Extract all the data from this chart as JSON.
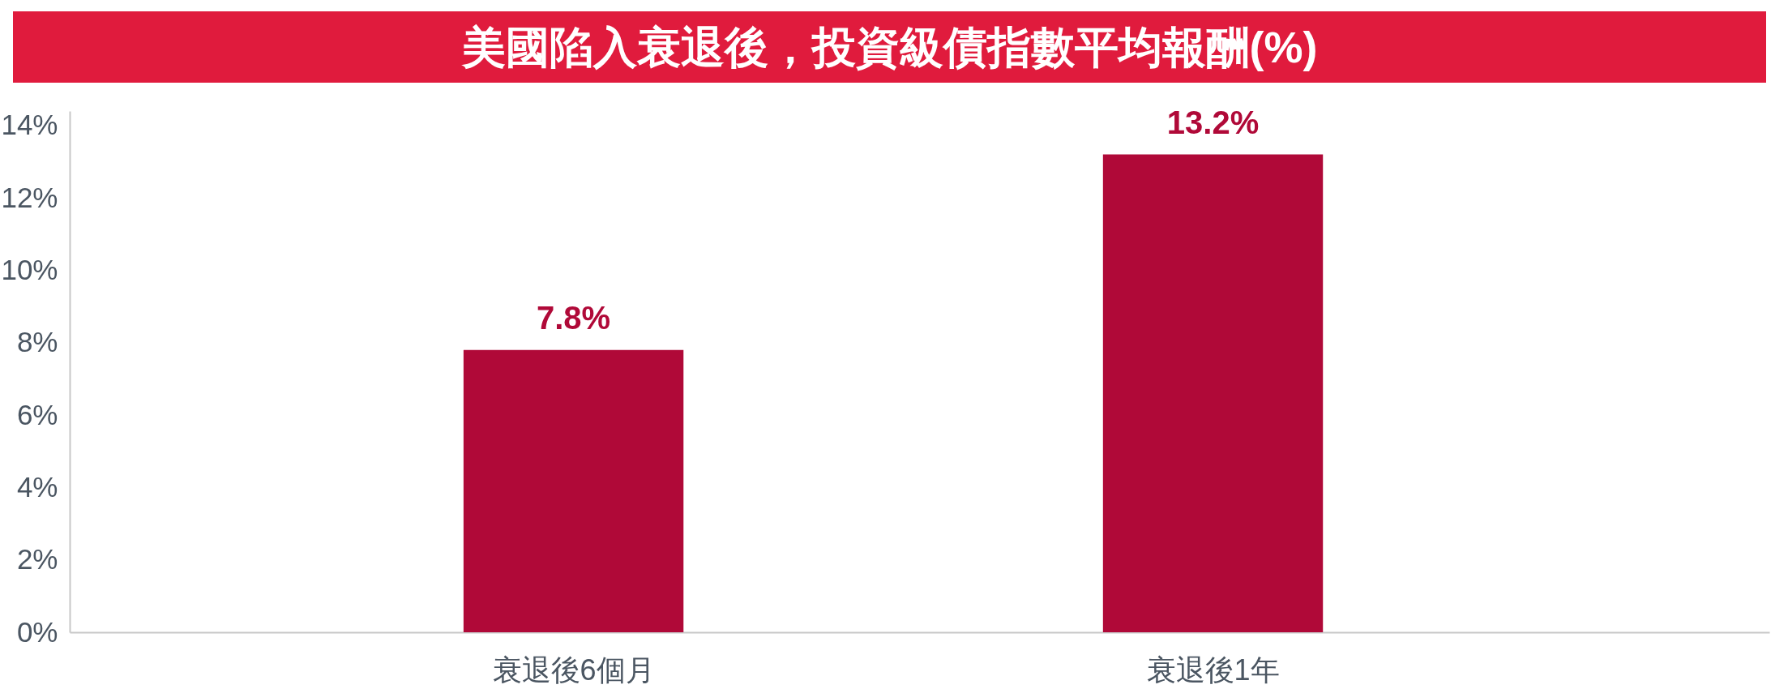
{
  "chart_data": {
    "type": "bar",
    "title": "美國陷入衰退後，投資級債指數平均報酬(%)",
    "categories": [
      "衰退後6個月",
      "衰退後1年"
    ],
    "values": [
      7.8,
      13.2
    ],
    "value_labels": [
      "7.8%",
      "13.2%"
    ],
    "color": "#b00938",
    "ylim": [
      0,
      14.4
    ],
    "yticks": [
      {
        "value": 0,
        "label": "0%"
      },
      {
        "value": 2,
        "label": "2%"
      },
      {
        "value": 4,
        "label": "4%"
      },
      {
        "value": 6,
        "label": "6%"
      },
      {
        "value": 8,
        "label": "8%"
      },
      {
        "value": 10,
        "label": "10%"
      },
      {
        "value": 12,
        "label": "12%"
      },
      {
        "value": 14,
        "label": "14%"
      }
    ]
  }
}
